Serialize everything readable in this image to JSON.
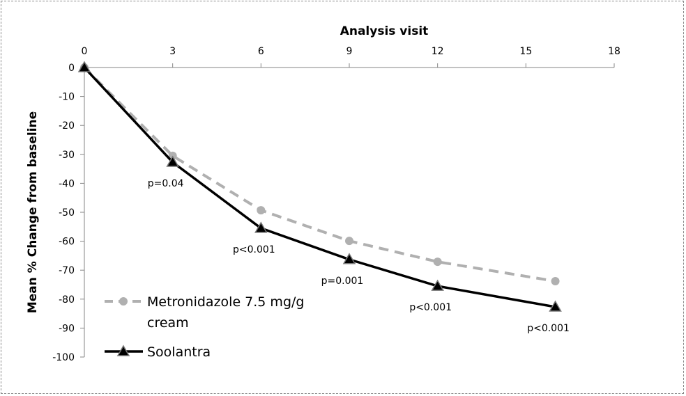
{
  "chart_data": {
    "type": "line",
    "xlabel": "Analysis visit",
    "ylabel": "Mean  % Change  from baseline",
    "xlim": [
      0,
      18
    ],
    "ylim": [
      -100,
      0
    ],
    "x_ticks": [
      0,
      3,
      6,
      9,
      12,
      15,
      18
    ],
    "y_ticks": [
      0,
      -10,
      -20,
      -30,
      -40,
      -50,
      -60,
      -70,
      -80,
      -90,
      -100
    ],
    "x_axis_position": "top",
    "grid": false,
    "legend_position": "bottom-left",
    "series": [
      {
        "name": "Metronidazole 7.5 mg/g cream",
        "legend_lines": [
          "Metronidazole 7.5 mg/g",
          "cream"
        ],
        "color": "#b0b0b0",
        "style": "dashed",
        "marker": "circle",
        "x": [
          0,
          3,
          6,
          9,
          12,
          16
        ],
        "y": [
          0,
          -30.5,
          -49.3,
          -59.9,
          -67.1,
          -73.8
        ]
      },
      {
        "name": "Soolantra",
        "legend_lines": [
          "Soolantra"
        ],
        "color": "#000000",
        "style": "solid",
        "marker": "triangle",
        "x": [
          0,
          3,
          6,
          9,
          12,
          16
        ],
        "y": [
          0,
          -32.7,
          -55.5,
          -66.3,
          -75.5,
          -82.7
        ]
      }
    ],
    "annotations": [
      {
        "x": 3,
        "y": -32.7,
        "text": "p=0.04"
      },
      {
        "x": 6,
        "y": -55.5,
        "text": "p<0.001"
      },
      {
        "x": 9,
        "y": -66.3,
        "text": "p=0.001"
      },
      {
        "x": 12,
        "y": -75.5,
        "text": "p<0.001"
      },
      {
        "x": 16,
        "y": -82.7,
        "text": "p<0.001"
      }
    ]
  }
}
